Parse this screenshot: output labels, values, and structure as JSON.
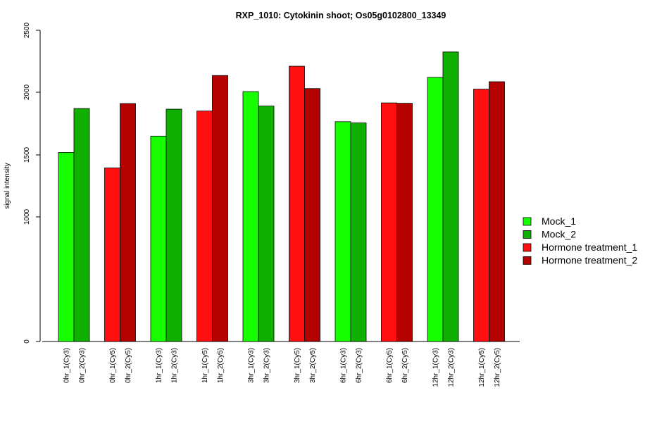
{
  "chart_data": {
    "type": "bar",
    "title": "RXP_1010: Cytokinin shoot; Os05g0102800_13349",
    "xlabel": "",
    "ylabel": "signal intensity",
    "ylim": [
      0,
      2500
    ],
    "yticks": [
      0,
      1000,
      1500,
      2000,
      2500
    ],
    "ytick_labels": [
      "0",
      "1000",
      "1500",
      "2000",
      "2500"
    ],
    "grid": false,
    "legend_position": "right",
    "colors": {
      "Mock_1": "#18ff00",
      "Mock_2": "#10b000",
      "Hormone treatment_1": "#ff0f0f",
      "Hormone treatment_2": "#b50000"
    },
    "legend": [
      {
        "label": "Mock_1",
        "color": "#18ff00"
      },
      {
        "label": "Mock_2",
        "color": "#10b000"
      },
      {
        "label": "Hormone treatment_1",
        "color": "#ff0f0f"
      },
      {
        "label": "Hormone treatment_2",
        "color": "#b50000"
      }
    ],
    "groups": [
      {
        "bars": [
          {
            "label": "0hr_1(Cy3)",
            "value": 1520,
            "series": "Mock_1"
          },
          {
            "label": "0hr_2(Cy3)",
            "value": 1870,
            "series": "Mock_2"
          }
        ]
      },
      {
        "bars": [
          {
            "label": "0hr_1(Cy5)",
            "value": 1395,
            "series": "Hormone treatment_1"
          },
          {
            "label": "0hr_2(Cy5)",
            "value": 1910,
            "series": "Hormone treatment_2"
          }
        ]
      },
      {
        "bars": [
          {
            "label": "1hr_1(Cy3)",
            "value": 1650,
            "series": "Mock_1"
          },
          {
            "label": "1hr_2(Cy3)",
            "value": 1865,
            "series": "Mock_2"
          }
        ]
      },
      {
        "bars": [
          {
            "label": "1hr_1(Cy5)",
            "value": 1850,
            "series": "Hormone treatment_1"
          },
          {
            "label": "1hr_2(Cy5)",
            "value": 2135,
            "series": "Hormone treatment_2"
          }
        ]
      },
      {
        "bars": [
          {
            "label": "3hr_1(Cy3)",
            "value": 2005,
            "series": "Mock_1"
          },
          {
            "label": "3hr_2(Cy3)",
            "value": 1890,
            "series": "Mock_2"
          }
        ]
      },
      {
        "bars": [
          {
            "label": "3hr_1(Cy5)",
            "value": 2210,
            "series": "Hormone treatment_1"
          },
          {
            "label": "3hr_2(Cy5)",
            "value": 2030,
            "series": "Hormone treatment_2"
          }
        ]
      },
      {
        "bars": [
          {
            "label": "6hr_1(Cy3)",
            "value": 1765,
            "series": "Mock_1"
          },
          {
            "label": "6hr_2(Cy3)",
            "value": 1755,
            "series": "Mock_2"
          }
        ]
      },
      {
        "bars": [
          {
            "label": "6hr_1(Cy5)",
            "value": 1915,
            "series": "Hormone treatment_1"
          },
          {
            "label": "6hr_2(Cy5)",
            "value": 1912,
            "series": "Hormone treatment_2"
          }
        ]
      },
      {
        "bars": [
          {
            "label": "12hr_1(Cy3)",
            "value": 2120,
            "series": "Mock_1"
          },
          {
            "label": "12hr_2(Cy3)",
            "value": 2325,
            "series": "Mock_2"
          }
        ]
      },
      {
        "bars": [
          {
            "label": "12hr_1(Cy5)",
            "value": 2025,
            "series": "Hormone treatment_1"
          },
          {
            "label": "12hr_2(Cy5)",
            "value": 2085,
            "series": "Hormone treatment_2"
          }
        ]
      }
    ]
  }
}
